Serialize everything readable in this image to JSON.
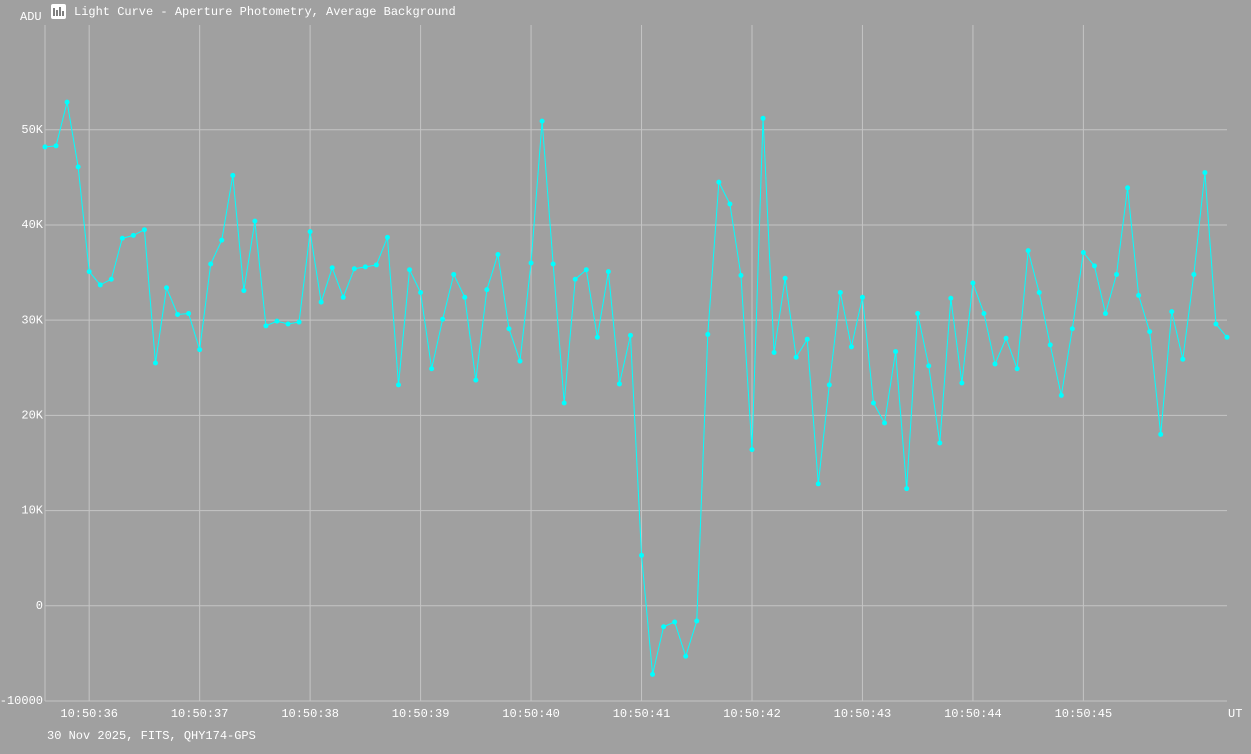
{
  "chart_data": {
    "type": "line",
    "title": "Light Curve - Aperture Photometry, Average Background",
    "y_label": "ADU",
    "x_label": "UT",
    "footer": "30 Nov 2025, FITS, QHY174-GPS",
    "color": "#00ffff",
    "grid": true,
    "x": [
      35.6,
      35.7,
      35.8,
      35.9,
      36.0,
      36.1,
      36.2,
      36.3,
      36.4,
      36.5,
      36.6,
      36.7,
      36.8,
      36.9,
      37.0,
      37.1,
      37.2,
      37.3,
      37.4,
      37.5,
      37.6,
      37.7,
      37.8,
      37.9,
      38.0,
      38.1,
      38.2,
      38.3,
      38.4,
      38.5,
      38.6,
      38.7,
      38.8,
      38.9,
      39.0,
      39.1,
      39.2,
      39.3,
      39.4,
      39.5,
      39.6,
      39.7,
      39.8,
      39.9,
      40.0,
      40.1,
      40.2,
      40.3,
      40.4,
      40.5,
      40.6,
      40.7,
      40.8,
      40.9,
      41.0,
      41.1,
      41.2,
      41.3,
      41.4,
      41.5,
      41.6,
      41.7,
      41.8,
      41.9,
      42.0,
      42.1,
      42.2,
      42.3,
      42.4,
      42.5,
      42.6,
      42.7,
      42.8,
      42.9,
      43.0,
      43.1,
      43.2,
      43.3,
      43.4,
      43.5,
      43.6,
      43.7,
      43.8,
      43.9,
      44.0,
      44.1,
      44.2,
      44.3,
      44.4,
      44.5,
      44.6,
      44.7,
      44.8,
      44.9,
      45.0,
      45.1,
      45.2,
      45.3,
      45.4,
      45.5,
      45.6,
      45.7,
      45.8,
      45.9,
      46.0,
      46.1,
      46.2,
      46.3
    ],
    "values": [
      48200,
      48300,
      52900,
      46100,
      35100,
      33700,
      34300,
      38600,
      38900,
      39500,
      25500,
      33400,
      30600,
      30700,
      26900,
      35900,
      38400,
      45200,
      33100,
      40400,
      29400,
      29900,
      29600,
      29800,
      39300,
      31900,
      35500,
      32400,
      35400,
      35600,
      35800,
      38700,
      23200,
      35300,
      32900,
      24900,
      30100,
      34800,
      32400,
      23700,
      33200,
      36900,
      29100,
      25700,
      36000,
      50900,
      35900,
      21300,
      34300,
      35300,
      28200,
      35100,
      23300,
      28400,
      5300,
      -7200,
      -2200,
      -1700,
      -5300,
      -1600,
      28500,
      44500,
      42200,
      34700,
      16400,
      51200,
      26600,
      34400,
      26100,
      28000,
      12800,
      23200,
      32900,
      27200,
      32400,
      21300,
      19200,
      26700,
      12300,
      30700,
      25200,
      17100,
      32300,
      23400,
      33900,
      30700,
      25400,
      28100,
      24900,
      37300,
      32900,
      27400,
      22100,
      29100,
      37100,
      35700,
      30700,
      34800,
      43900,
      32600,
      28800,
      18000,
      30900,
      25900,
      34800,
      45500,
      29600,
      28200
    ],
    "xlim": [
      35.6,
      46.3
    ],
    "xticks": [
      {
        "value": 36,
        "label": "10:50:36"
      },
      {
        "value": 37,
        "label": "10:50:37"
      },
      {
        "value": 38,
        "label": "10:50:38"
      },
      {
        "value": 39,
        "label": "10:50:39"
      },
      {
        "value": 40,
        "label": "10:50:40"
      },
      {
        "value": 41,
        "label": "10:50:41"
      },
      {
        "value": 42,
        "label": "10:50:42"
      },
      {
        "value": 43,
        "label": "10:50:43"
      },
      {
        "value": 44,
        "label": "10:50:44"
      },
      {
        "value": 45,
        "label": "10:50:45"
      }
    ],
    "ylim": [
      -10000,
      61000
    ],
    "yticks": [
      {
        "value": -10000,
        "label": "-10000"
      },
      0,
      {
        "value": 10000,
        "label": "10K"
      },
      {
        "value": 20000,
        "label": "20K"
      },
      {
        "value": 30000,
        "label": "30K"
      },
      {
        "value": 40000,
        "label": "40K"
      },
      {
        "value": 50000,
        "label": "50K"
      }
    ]
  }
}
